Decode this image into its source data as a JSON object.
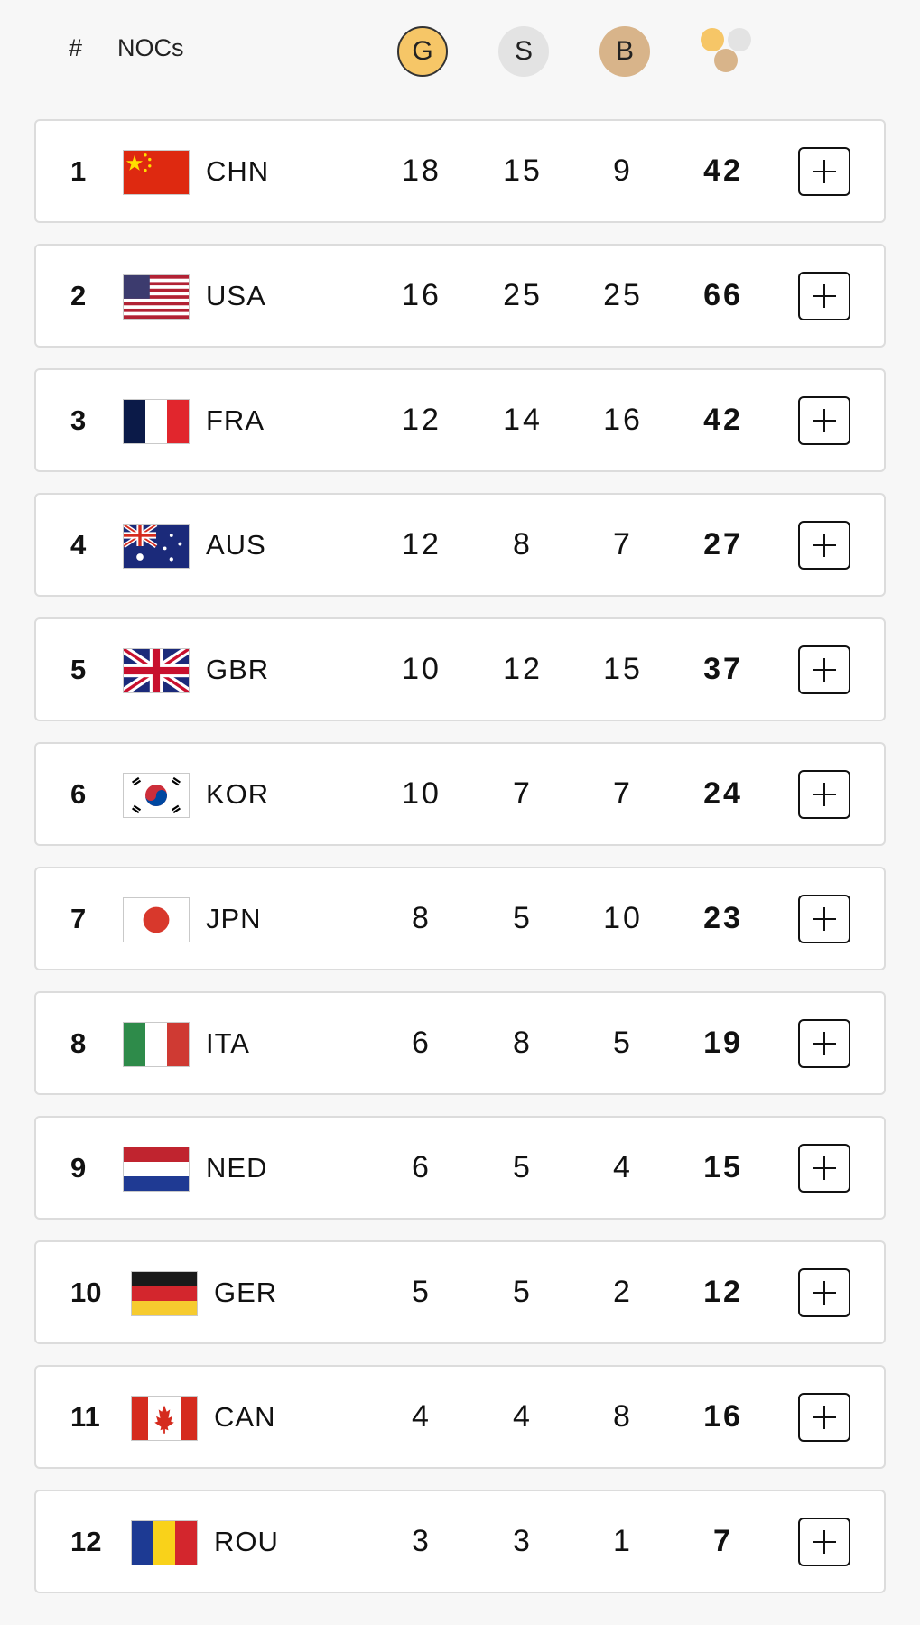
{
  "header": {
    "rank_label": "#",
    "nocs_label": "NOCs",
    "gold_label": "G",
    "silver_label": "S",
    "bronze_label": "B",
    "total_icon": "medals-total-icon"
  },
  "colors": {
    "gold": "#f6c667",
    "silver": "#e3e3e3",
    "bronze": "#d8b48a"
  },
  "rows": [
    {
      "rank": "1",
      "noc": "CHN",
      "flag": "china-flag-icon",
      "gold": "18",
      "silver": "15",
      "bronze": "9",
      "total": "42"
    },
    {
      "rank": "2",
      "noc": "USA",
      "flag": "usa-flag-icon",
      "gold": "16",
      "silver": "25",
      "bronze": "25",
      "total": "66"
    },
    {
      "rank": "3",
      "noc": "FRA",
      "flag": "france-flag-icon",
      "gold": "12",
      "silver": "14",
      "bronze": "16",
      "total": "42"
    },
    {
      "rank": "4",
      "noc": "AUS",
      "flag": "australia-flag-icon",
      "gold": "12",
      "silver": "8",
      "bronze": "7",
      "total": "27"
    },
    {
      "rank": "5",
      "noc": "GBR",
      "flag": "great-britain-flag-icon",
      "gold": "10",
      "silver": "12",
      "bronze": "15",
      "total": "37"
    },
    {
      "rank": "6",
      "noc": "KOR",
      "flag": "korea-flag-icon",
      "gold": "10",
      "silver": "7",
      "bronze": "7",
      "total": "24"
    },
    {
      "rank": "7",
      "noc": "JPN",
      "flag": "japan-flag-icon",
      "gold": "8",
      "silver": "5",
      "bronze": "10",
      "total": "23"
    },
    {
      "rank": "8",
      "noc": "ITA",
      "flag": "italy-flag-icon",
      "gold": "6",
      "silver": "8",
      "bronze": "5",
      "total": "19"
    },
    {
      "rank": "9",
      "noc": "NED",
      "flag": "netherlands-flag-icon",
      "gold": "6",
      "silver": "5",
      "bronze": "4",
      "total": "15"
    },
    {
      "rank": "10",
      "noc": "GER",
      "flag": "germany-flag-icon",
      "gold": "5",
      "silver": "5",
      "bronze": "2",
      "total": "12"
    },
    {
      "rank": "11",
      "noc": "CAN",
      "flag": "canada-flag-icon",
      "gold": "4",
      "silver": "4",
      "bronze": "8",
      "total": "16"
    },
    {
      "rank": "12",
      "noc": "ROU",
      "flag": "romania-flag-icon",
      "gold": "3",
      "silver": "3",
      "bronze": "1",
      "total": "7"
    }
  ]
}
